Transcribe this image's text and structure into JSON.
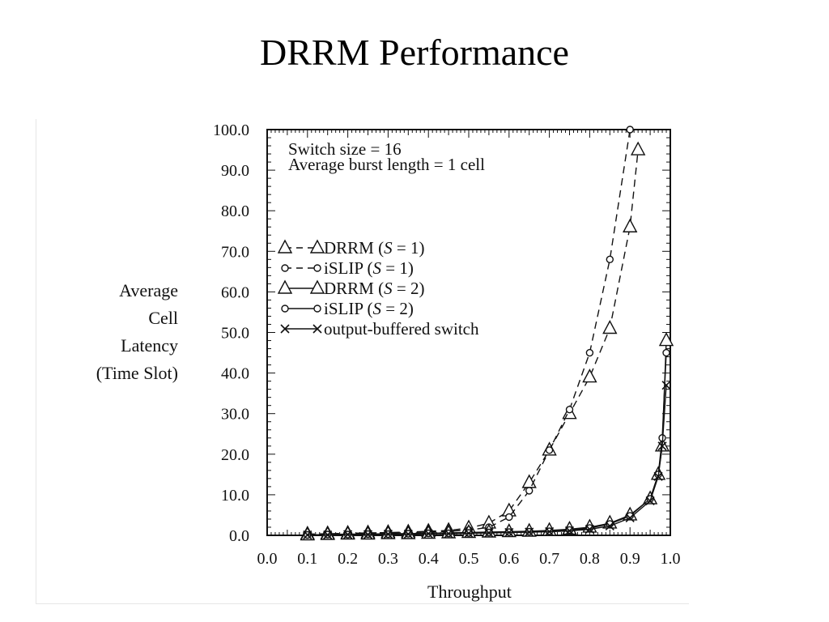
{
  "slide": {
    "title": "DRRM Performance"
  },
  "chart_data": {
    "type": "line",
    "title": "",
    "annotations": [
      "Switch size = 16",
      "Average burst length = 1 cell"
    ],
    "xlabel": "Throughput",
    "ylabel_lines": [
      "Average",
      "Cell",
      "Latency",
      "(Time Slot)"
    ],
    "xlim": [
      0.0,
      1.0
    ],
    "ylim": [
      0.0,
      100.0
    ],
    "x_ticks": [
      "0.0",
      "0.1",
      "0.2",
      "0.3",
      "0.4",
      "0.5",
      "0.6",
      "0.7",
      "0.8",
      "0.9",
      "1.0"
    ],
    "y_ticks": [
      "0.0",
      "10.0",
      "20.0",
      "30.0",
      "40.0",
      "50.0",
      "60.0",
      "70.0",
      "80.0",
      "90.0",
      "100.0"
    ],
    "legend_placement": "upper-left",
    "series": [
      {
        "name": "DRRM (S = 1)",
        "name_base": "DRRM (",
        "name_var": "S",
        "name_val": " = 1)",
        "marker": "triangle",
        "style": "dashed",
        "x": [
          0.1,
          0.15,
          0.2,
          0.25,
          0.3,
          0.35,
          0.4,
          0.45,
          0.5,
          0.55,
          0.6,
          0.65,
          0.7,
          0.75,
          0.8,
          0.85,
          0.9,
          0.92
        ],
        "y": [
          0.3,
          0.4,
          0.5,
          0.6,
          0.7,
          0.8,
          1.0,
          1.2,
          1.8,
          3.0,
          6.0,
          13.0,
          21.0,
          30.0,
          39.0,
          51.0,
          76.0,
          95.0
        ]
      },
      {
        "name": "iSLIP (S = 1)",
        "name_base": "iSLIP (",
        "name_var": "S",
        "name_val": " = 1)",
        "marker": "circle",
        "style": "dashed",
        "x": [
          0.1,
          0.15,
          0.2,
          0.25,
          0.3,
          0.35,
          0.4,
          0.45,
          0.5,
          0.55,
          0.6,
          0.65,
          0.7,
          0.75,
          0.8,
          0.85,
          0.9
        ],
        "y": [
          0.2,
          0.3,
          0.4,
          0.5,
          0.6,
          0.7,
          0.8,
          1.0,
          1.3,
          2.0,
          4.5,
          11.0,
          21.0,
          31.0,
          45.0,
          68.0,
          100.0
        ]
      },
      {
        "name": "DRRM (S = 2)",
        "name_base": "DRRM (",
        "name_var": "S",
        "name_val": " = 2)",
        "marker": "triangle",
        "style": "solid",
        "x": [
          0.1,
          0.15,
          0.2,
          0.25,
          0.3,
          0.35,
          0.4,
          0.45,
          0.5,
          0.55,
          0.6,
          0.65,
          0.7,
          0.75,
          0.8,
          0.85,
          0.9,
          0.95,
          0.97,
          0.98,
          0.99
        ],
        "y": [
          0.1,
          0.2,
          0.3,
          0.3,
          0.4,
          0.4,
          0.5,
          0.6,
          0.7,
          0.8,
          0.9,
          1.0,
          1.2,
          1.5,
          2.0,
          3.0,
          5.0,
          9.0,
          15.0,
          22.0,
          48.0
        ]
      },
      {
        "name": "iSLIP (S = 2)",
        "name_base": "iSLIP (",
        "name_var": "S",
        "name_val": " = 2)",
        "marker": "circle",
        "style": "solid",
        "x": [
          0.1,
          0.15,
          0.2,
          0.25,
          0.3,
          0.35,
          0.4,
          0.45,
          0.5,
          0.55,
          0.6,
          0.65,
          0.7,
          0.75,
          0.8,
          0.85,
          0.9,
          0.95,
          0.97,
          0.98,
          0.99
        ],
        "y": [
          0.1,
          0.2,
          0.2,
          0.3,
          0.3,
          0.4,
          0.5,
          0.5,
          0.6,
          0.7,
          0.8,
          0.9,
          1.0,
          1.3,
          1.8,
          2.8,
          4.8,
          9.0,
          15.0,
          24.0,
          45.0
        ]
      },
      {
        "name": "output-buffered switch",
        "name_base": "output-buffered switch",
        "name_var": "",
        "name_val": "",
        "marker": "x",
        "style": "solid",
        "x": [
          0.1,
          0.15,
          0.2,
          0.25,
          0.3,
          0.35,
          0.4,
          0.45,
          0.5,
          0.55,
          0.6,
          0.65,
          0.7,
          0.75,
          0.8,
          0.85,
          0.9,
          0.95,
          0.97,
          0.98,
          0.99
        ],
        "y": [
          0.1,
          0.1,
          0.2,
          0.2,
          0.3,
          0.3,
          0.4,
          0.4,
          0.5,
          0.6,
          0.7,
          0.8,
          0.9,
          1.1,
          1.5,
          2.3,
          4.3,
          8.5,
          14.5,
          22.0,
          37.0
        ]
      }
    ]
  }
}
